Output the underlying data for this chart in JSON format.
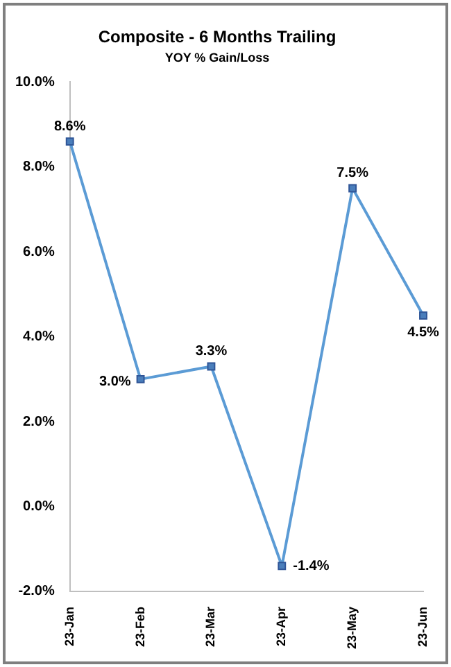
{
  "chart_data": {
    "type": "line",
    "title": "Composite - 6 Months Trailing",
    "subtitle": "YOY % Gain/Loss",
    "categories": [
      "23-Jan",
      "23-Feb",
      "23-Mar",
      "23-Apr",
      "23-May",
      "23-Jun"
    ],
    "series": [
      {
        "color": "#5b9bd5",
        "values": [
          8.6,
          3.0,
          3.3,
          -1.4,
          7.5,
          4.5
        ],
        "value_labels": [
          "8.6%",
          "3.0%",
          "3.3%",
          "-1.4%",
          "7.5%",
          "4.5%"
        ]
      }
    ],
    "ylim": [
      -2,
      10
    ],
    "yticks": [
      {
        "value": -2,
        "label": "-2.0%"
      },
      {
        "value": 0,
        "label": "0.0%"
      },
      {
        "value": 2,
        "label": "2.0%"
      },
      {
        "value": 4,
        "label": "4.0%"
      },
      {
        "value": 6,
        "label": "6.0%"
      },
      {
        "value": 8,
        "label": "8.0%"
      },
      {
        "value": 10,
        "label": "10.0%"
      }
    ],
    "grid": false,
    "legend": false,
    "marker": "square",
    "line_style": "solid"
  }
}
